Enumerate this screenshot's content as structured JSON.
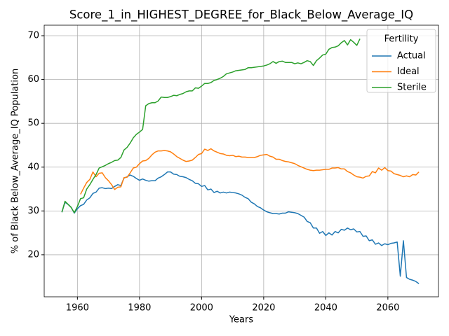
{
  "chart_data": {
    "type": "line",
    "title": "Score_1_in_HIGHEST_DEGREE_for_Black_Below_Average_IQ",
    "xlabel": "Years",
    "ylabel": "% of Black Below_Average_IQ Population",
    "legend_title": "Fertility",
    "legend_loc": "upper right",
    "grid": true,
    "xlim": [
      1949.3,
      2076.3
    ],
    "ylim": [
      10.4,
      72.4
    ],
    "xticks": [
      1960,
      1980,
      2000,
      2020,
      2040,
      2060
    ],
    "yticks": [
      20,
      30,
      40,
      50,
      60,
      70
    ],
    "x": [
      1955,
      1956,
      1957,
      1958,
      1959,
      1960,
      1961,
      1962,
      1963,
      1964,
      1965,
      1966,
      1967,
      1968,
      1969,
      1970,
      1971,
      1972,
      1973,
      1974,
      1975,
      1976,
      1977,
      1978,
      1979,
      1980,
      1981,
      1982,
      1983,
      1984,
      1985,
      1986,
      1987,
      1988,
      1989,
      1990,
      1991,
      1992,
      1993,
      1994,
      1995,
      1996,
      1997,
      1998,
      1999,
      2000,
      2001,
      2002,
      2003,
      2004,
      2005,
      2006,
      2007,
      2008,
      2009,
      2010,
      2011,
      2012,
      2013,
      2014,
      2015,
      2016,
      2017,
      2018,
      2019,
      2020,
      2021,
      2022,
      2023,
      2024,
      2025,
      2026,
      2027,
      2028,
      2029,
      2030,
      2031,
      2032,
      2033,
      2034,
      2035,
      2036,
      2037,
      2038,
      2039,
      2040,
      2041,
      2042,
      2043,
      2044,
      2045,
      2046,
      2047,
      2048,
      2049,
      2050,
      2051,
      2052,
      2053,
      2054,
      2055,
      2056,
      2057,
      2058,
      2059,
      2060,
      2061,
      2062,
      2063,
      2064,
      2065,
      2066,
      2067,
      2068,
      2069,
      2070
    ],
    "series": [
      {
        "name": "Actual",
        "color": "#1f77b4",
        "values": [
          29.7,
          32,
          31.5,
          30.8,
          29.5,
          30.5,
          31.2,
          31.5,
          32.5,
          33,
          34,
          34.3,
          35.2,
          35.3,
          35.1,
          35.2,
          35.1,
          35.6,
          36,
          35.8,
          37.5,
          37.8,
          38.2,
          37.9,
          37.4,
          37,
          37.3,
          37,
          36.8,
          36.9,
          36.9,
          37.5,
          37.8,
          38.3,
          38.9,
          38.9,
          38.4,
          38.3,
          37.9,
          37.8,
          37.6,
          37.2,
          36.9,
          36.3,
          36.2,
          35.6,
          35.8,
          34.8,
          35,
          34.2,
          34.5,
          34.1,
          34.3,
          34.1,
          34.3,
          34.2,
          34.1,
          33.9,
          33.6,
          33.1,
          32.8,
          32,
          31.6,
          31,
          30.7,
          30.2,
          29.8,
          29.6,
          29.4,
          29.4,
          29.3,
          29.5,
          29.5,
          29.8,
          29.7,
          29.6,
          29.4,
          29,
          28.6,
          27.6,
          27.3,
          26.1,
          26.1,
          24.9,
          25.3,
          24.4,
          25,
          24.5,
          25.3,
          25,
          25.8,
          25.6,
          26.1,
          25.7,
          25.9,
          25.2,
          25.3,
          24.2,
          24.3,
          23.2,
          23.4,
          22.4,
          22.7,
          22.1,
          22.5,
          22.3,
          22.6,
          22.7,
          22.9,
          15.1,
          23.2,
          14.8,
          14.4,
          14.2,
          13.9,
          13.4
        ]
      },
      {
        "name": "Ideal",
        "color": "#ff7f0e",
        "values": [
          null,
          null,
          null,
          null,
          null,
          null,
          33.8,
          35.2,
          36.5,
          37.2,
          38.9,
          37.8,
          38.6,
          38.7,
          37.6,
          36.9,
          36,
          34.9,
          35.4,
          35.5,
          37.6,
          37.7,
          38.7,
          39.8,
          40,
          40.8,
          41.4,
          41.5,
          42,
          42.8,
          43.4,
          43.7,
          43.7,
          43.8,
          43.7,
          43.5,
          43,
          42.4,
          42,
          41.6,
          41.3,
          41.4,
          41.6,
          42.2,
          42.9,
          43.1,
          44.1,
          43.8,
          44.2,
          43.7,
          43.4,
          43.1,
          43,
          42.7,
          42.6,
          42.7,
          42.4,
          42.5,
          42.3,
          42.3,
          42.2,
          42.2,
          42.2,
          42.4,
          42.7,
          42.8,
          42.9,
          42.5,
          42.3,
          41.8,
          41.8,
          41.5,
          41.3,
          41.2,
          41,
          40.8,
          40.4,
          40.1,
          39.8,
          39.5,
          39.3,
          39.2,
          39.3,
          39.3,
          39.4,
          39.5,
          39.5,
          39.8,
          39.8,
          39.9,
          39.6,
          39.6,
          39,
          38.7,
          38.2,
          37.8,
          37.7,
          37.5,
          37.9,
          38,
          39,
          38.7,
          39.8,
          39.3,
          39.9,
          39.2,
          39.1,
          38.5,
          38.3,
          38.1,
          37.8,
          38,
          37.8,
          38.3,
          38.2,
          38.9
        ]
      },
      {
        "name": "Sterile",
        "color": "#2ca02c",
        "values": [
          29.7,
          32.2,
          31.5,
          30.8,
          29.6,
          31,
          32.8,
          33,
          35,
          36,
          37.2,
          38.3,
          39.8,
          40.1,
          40.4,
          40.8,
          41.1,
          41.5,
          41.6,
          42.2,
          43.9,
          44.5,
          45.5,
          46.7,
          47.5,
          48,
          48.6,
          54,
          54.5,
          54.7,
          54.7,
          55.1,
          56,
          55.9,
          55.9,
          56.1,
          56.4,
          56.3,
          56.6,
          56.8,
          57.2,
          57.4,
          57.4,
          58.1,
          58,
          58.5,
          59.1,
          59.1,
          59.3,
          59.8,
          60,
          60.3,
          60.7,
          61.3,
          61.5,
          61.7,
          62,
          62.1,
          62.2,
          62.3,
          62.7,
          62.7,
          62.8,
          62.9,
          63,
          63.1,
          63.3,
          63.6,
          64.1,
          63.7,
          64.1,
          64.2,
          63.9,
          63.9,
          63.9,
          63.6,
          63.8,
          63.6,
          63.9,
          64.3,
          64.1,
          63.2,
          64.3,
          64.9,
          65.6,
          65.8,
          66.9,
          67.3,
          67.4,
          67.7,
          68.4,
          68.9,
          67.9,
          69.1,
          68.5,
          67.8,
          69.3,
          null,
          null,
          null,
          null,
          null,
          null,
          null,
          null,
          null,
          null,
          null,
          null,
          null,
          null,
          null,
          null,
          null,
          null,
          null
        ]
      }
    ]
  }
}
